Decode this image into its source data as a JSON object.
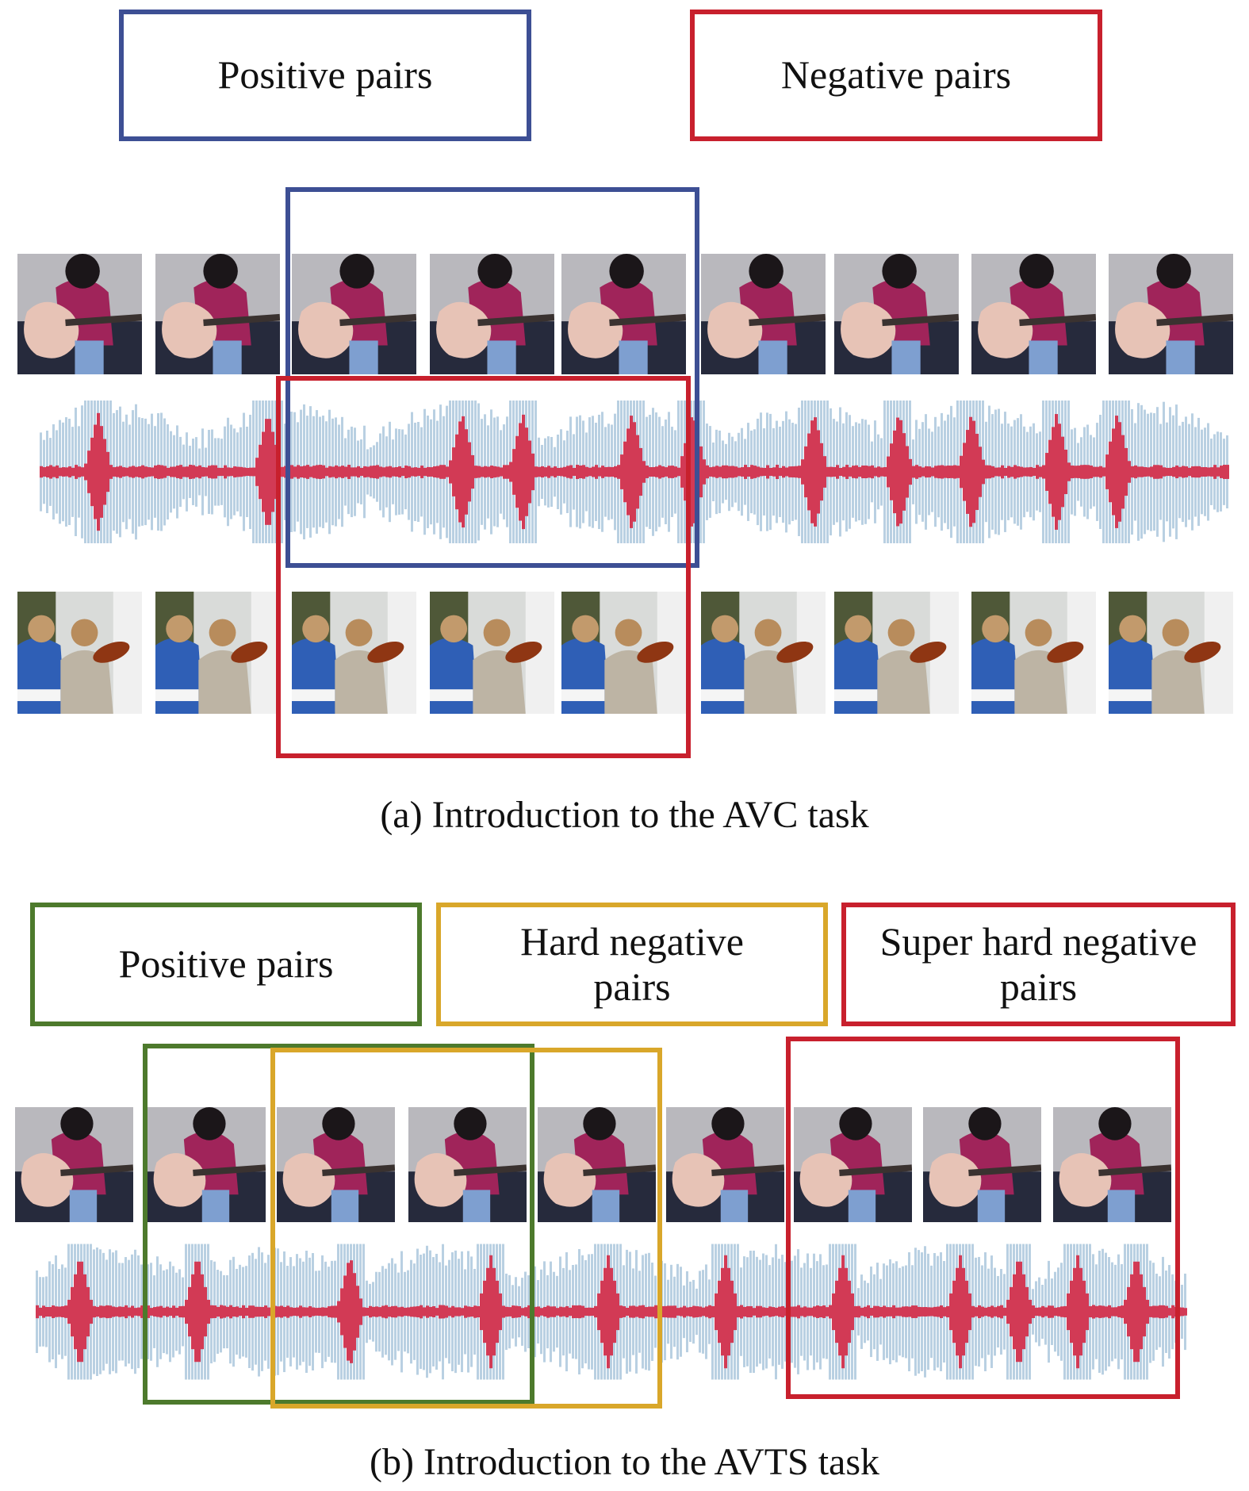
{
  "colors": {
    "blue": "#3d4f94",
    "red": "#c8202d",
    "green": "#4d7a2c",
    "yellow": "#d9a72a",
    "wave_light": "#b9d0e2",
    "wave_red": "#d23a55"
  },
  "panel_a": {
    "labels": {
      "positive": "Positive pairs",
      "negative": "Negative pairs"
    },
    "top_row_content": "guitar",
    "bottom_row_content": "violin",
    "frame_count": 9,
    "caption": "(a) Introduction to the AVC task"
  },
  "panel_b": {
    "labels": {
      "positive": "Positive pairs",
      "hard_negative": "Hard negative pairs",
      "super_hard_negative": "Super hard negative pairs"
    },
    "frame_count": 9,
    "caption": "(b) Introduction to the AVTS task"
  }
}
